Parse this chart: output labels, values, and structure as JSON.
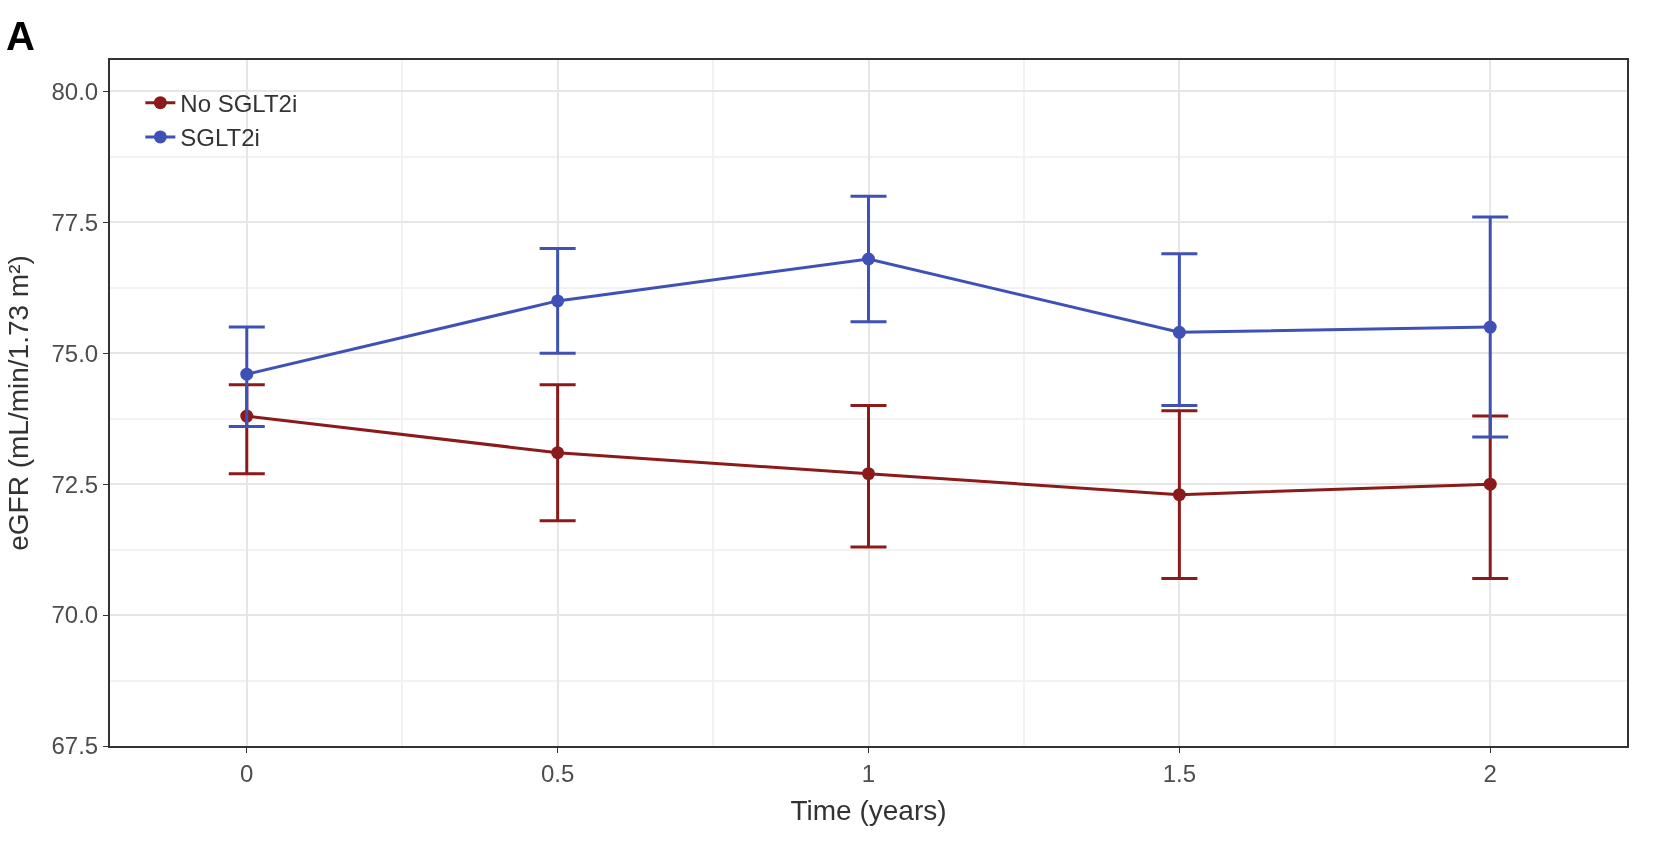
{
  "chart_data": {
    "type": "line",
    "xlabel": "Time (years)",
    "ylabel": "eGFR (mL/min/1.73 m²)",
    "annotations": [
      "A"
    ],
    "x": [
      0,
      0.5,
      1,
      1.5,
      2
    ],
    "xlim": [
      -0.22,
      2.22
    ],
    "xticks": [
      0,
      0.5,
      1,
      1.5,
      2
    ],
    "ylim": [
      67.5,
      80.6
    ],
    "yticks": [
      {
        "value": 67.5,
        "label": "67.5"
      },
      {
        "value": 70,
        "label": "70.0"
      },
      {
        "value": 72.5,
        "label": "72.5"
      },
      {
        "value": 75,
        "label": "75.0"
      },
      {
        "value": 77.5,
        "label": "77.5"
      },
      {
        "value": 80,
        "label": "80.0"
      }
    ],
    "grid": true,
    "legend": "top left",
    "marker": "circle",
    "line_style": "solid",
    "series": [
      {
        "name": "No SGLT2i",
        "color": "#8b1a1a",
        "values": [
          73.8,
          73.1,
          72.7,
          72.3,
          72.5
        ],
        "errors": [
          [
            72.7,
            74.4
          ],
          [
            71.8,
            74.4
          ],
          [
            71.3,
            74.0
          ],
          [
            70.7,
            73.9
          ],
          [
            70.7,
            73.8
          ]
        ]
      },
      {
        "name": "SGLT2i",
        "color": "#3f51b5",
        "values": [
          74.6,
          76.0,
          76.8,
          75.4,
          75.5
        ],
        "errors": [
          [
            73.6,
            75.5
          ],
          [
            75.0,
            77.0
          ],
          [
            75.6,
            78.0
          ],
          [
            74.0,
            76.9
          ],
          [
            73.4,
            77.6
          ]
        ]
      }
    ]
  }
}
